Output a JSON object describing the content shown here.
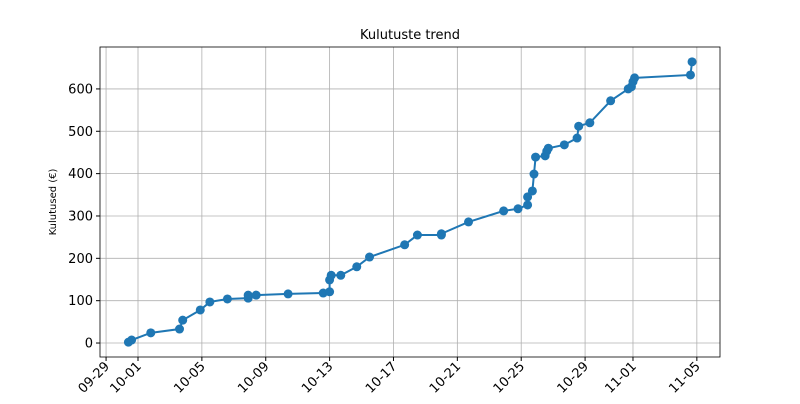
{
  "chart_data": {
    "type": "line",
    "title": "Kulutuste trend",
    "y_label": "Kulutused (€)",
    "x": [
      1.4,
      1.6,
      2.8,
      4.6,
      4.8,
      5.9,
      6.5,
      7.6,
      8.9,
      8.9,
      9.4,
      11.4,
      13.6,
      14.0,
      14.0,
      14.1,
      14.7,
      15.7,
      16.5,
      18.7,
      19.5,
      21.0,
      21.0,
      22.7,
      24.9,
      25.8,
      26.4,
      26.4,
      26.7,
      26.8,
      26.9,
      27.5,
      27.6,
      27.7,
      28.7,
      29.5,
      29.6,
      30.3,
      31.6,
      32.7,
      32.9,
      33.0,
      33.1,
      36.6,
      36.7
    ],
    "series": [
      {
        "name": "Kulutused",
        "color": "#1f77b4",
        "values": [
          2,
          7,
          24,
          33,
          54,
          78,
          97,
          104,
          106,
          113,
          113,
          116,
          118,
          121,
          149,
          160,
          160,
          180,
          203,
          232,
          255,
          255,
          258,
          286,
          312,
          317,
          326,
          345,
          359,
          399,
          439,
          442,
          453,
          460,
          468,
          484,
          512,
          520,
          572,
          600,
          605,
          617,
          626,
          633,
          664
        ]
      }
    ],
    "xlim": [
      -0.38,
      38.45
    ],
    "ylim": [
      -33,
      699
    ],
    "xticks": [
      {
        "value": 0,
        "label": "09-29"
      },
      {
        "value": 2,
        "label": "10-01"
      },
      {
        "value": 6,
        "label": "10-05"
      },
      {
        "value": 10,
        "label": "10-09"
      },
      {
        "value": 14,
        "label": "10-13"
      },
      {
        "value": 18,
        "label": "10-17"
      },
      {
        "value": 22,
        "label": "10-21"
      },
      {
        "value": 26,
        "label": "10-25"
      },
      {
        "value": 30,
        "label": "10-29"
      },
      {
        "value": 33,
        "label": "11-01"
      },
      {
        "value": 37,
        "label": "11-05"
      }
    ],
    "yticks": [
      0,
      100,
      200,
      300,
      400,
      500,
      600
    ],
    "grid": true
  }
}
